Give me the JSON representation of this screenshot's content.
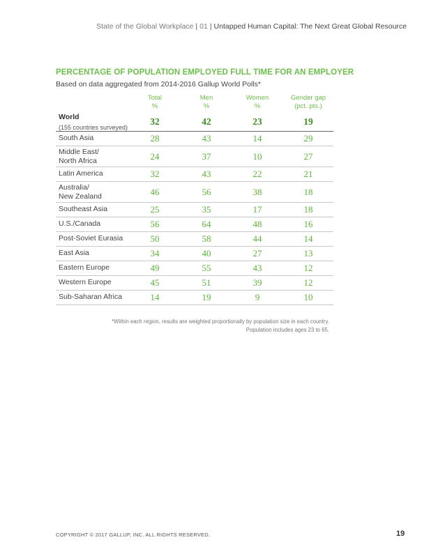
{
  "header": {
    "report": "State of the Global Workplace",
    "section_number": "01",
    "chapter": "Untapped Human Capital: The Next Great Global Resource"
  },
  "title": "PERCENTAGE OF POPULATION EMPLOYED FULL TIME FOR AN EMPLOYER",
  "subtitle": "Based on data aggregated from 2014-2016 Gallup World Polls*",
  "columns": [
    {
      "label": "Total",
      "unit": "%"
    },
    {
      "label": "Men",
      "unit": "%"
    },
    {
      "label": "Women",
      "unit": "%"
    },
    {
      "label": "Gender gap",
      "unit": "(pct. pts.)"
    }
  ],
  "rows": [
    {
      "region": "World",
      "note": "(155 countries surveyed)",
      "values": [
        "32",
        "42",
        "23",
        "19"
      ]
    },
    {
      "region": "South Asia",
      "values": [
        "28",
        "43",
        "14",
        "29"
      ]
    },
    {
      "region": "Middle East/\nNorth Africa",
      "values": [
        "24",
        "37",
        "10",
        "27"
      ]
    },
    {
      "region": "Latin America",
      "values": [
        "32",
        "43",
        "22",
        "21"
      ]
    },
    {
      "region": "Australia/\nNew Zealand",
      "values": [
        "46",
        "56",
        "38",
        "18"
      ]
    },
    {
      "region": "Southeast Asia",
      "values": [
        "25",
        "35",
        "17",
        "18"
      ]
    },
    {
      "region": "U.S./Canada",
      "values": [
        "56",
        "64",
        "48",
        "16"
      ]
    },
    {
      "region": "Post-Soviet Eurasia",
      "values": [
        "50",
        "58",
        "44",
        "14"
      ]
    },
    {
      "region": "East Asia",
      "values": [
        "34",
        "40",
        "27",
        "13"
      ]
    },
    {
      "region": "Eastern Europe",
      "values": [
        "49",
        "55",
        "43",
        "12"
      ]
    },
    {
      "region": "Western Europe",
      "values": [
        "45",
        "51",
        "39",
        "12"
      ]
    },
    {
      "region": "Sub-Saharan Africa",
      "values": [
        "14",
        "19",
        "9",
        "10"
      ]
    }
  ],
  "footnote": {
    "line1": "*Within each region, results are weighted proportionally by population size in each country.",
    "line2": "Population includes ages 23 to 65."
  },
  "copyright": "COPYRIGHT © 2017 GALLUP, INC. ALL RIGHTS RESERVED.",
  "page_number": "19",
  "colors": {
    "accent_green": "#6cbf4b",
    "value_green": "#5cb33a",
    "world_value_green": "#3d8f22"
  }
}
